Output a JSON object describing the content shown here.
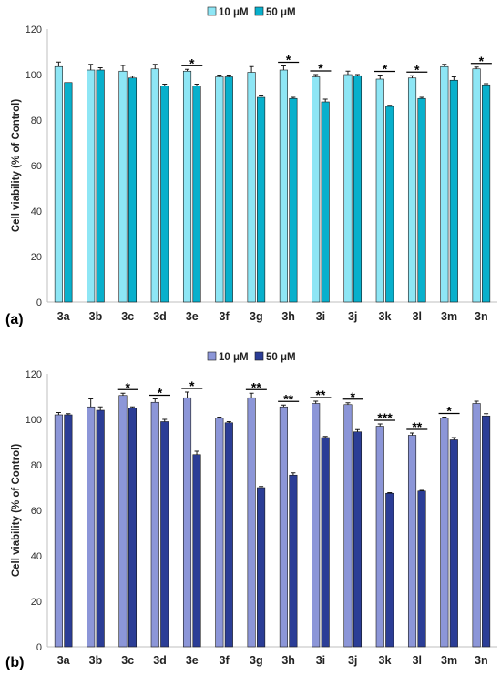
{
  "chart_data": [
    {
      "type": "bar",
      "panel_label": "(a)",
      "ylabel": "Cell viability (% of Control)",
      "ylim": [
        0,
        120
      ],
      "yticks": [
        0,
        20,
        40,
        60,
        80,
        100,
        120
      ],
      "grid": false,
      "legend_position": "top-center",
      "categories": [
        "3a",
        "3b",
        "3c",
        "3d",
        "3e",
        "3f",
        "3g",
        "3h",
        "3i",
        "3j",
        "3k",
        "3l",
        "3m",
        "3n"
      ],
      "series": [
        {
          "name": "10 μM",
          "color": "#8EE6F5",
          "values": [
            103.5,
            102,
            101.5,
            102.5,
            101.5,
            99,
            101,
            102,
            99,
            100,
            98,
            98.5,
            103.5,
            102.5
          ],
          "errors": [
            2,
            2.5,
            2.5,
            2,
            0.8,
            0.8,
            2.5,
            1.8,
            1,
            1.5,
            1.8,
            1,
            1,
            0.8
          ]
        },
        {
          "name": "50 μM",
          "color": "#08B0CC",
          "values": [
            96.5,
            102,
            98.5,
            95,
            95,
            99,
            90,
            89.5,
            88,
            99.5,
            86,
            89.5,
            97.5,
            95.5
          ],
          "errors": [
            0,
            1,
            0.8,
            0.8,
            0.8,
            0.8,
            1,
            0.5,
            1.2,
            0.5,
            0.5,
            0.5,
            1.5,
            0.5
          ]
        }
      ],
      "significance": [
        "",
        "",
        "",
        "",
        "*",
        "",
        "",
        "*",
        "*",
        "",
        "*",
        "*",
        "",
        "*"
      ]
    },
    {
      "type": "bar",
      "panel_label": "(b)",
      "ylabel": "Cell viability (% of Control)",
      "ylim": [
        0,
        120
      ],
      "yticks": [
        0,
        20,
        40,
        60,
        80,
        100,
        120
      ],
      "grid": false,
      "legend_position": "top-center",
      "categories": [
        "3a",
        "3b",
        "3c",
        "3d",
        "3e",
        "3f",
        "3g",
        "3h",
        "3i",
        "3j",
        "3k",
        "3l",
        "3m",
        "3n"
      ],
      "series": [
        {
          "name": "10 μM",
          "color": "#8C96D8",
          "values": [
            102,
            105.5,
            110.5,
            107.5,
            109.5,
            100.5,
            109.5,
            105.5,
            107,
            106.5,
            97,
            93,
            100.5,
            107
          ],
          "errors": [
            1,
            3.5,
            1,
            1.5,
            2.5,
            0.5,
            2,
            0.8,
            1,
            0.8,
            1,
            1,
            0.5,
            1
          ]
        },
        {
          "name": "50 μM",
          "color": "#2B3D96",
          "values": [
            102,
            104,
            105,
            99,
            84.5,
            98.5,
            70,
            75.5,
            92,
            94.5,
            67.5,
            68.5,
            91,
            101.5
          ],
          "errors": [
            0.5,
            1.5,
            0.5,
            1,
            1.5,
            0.5,
            0.5,
            1,
            0.5,
            1,
            0.3,
            0.3,
            1,
            1
          ]
        }
      ],
      "significance": [
        "",
        "",
        "*",
        "*",
        "*",
        "",
        "**",
        "**",
        "**",
        "*",
        "***",
        "**",
        "*",
        ""
      ]
    }
  ]
}
